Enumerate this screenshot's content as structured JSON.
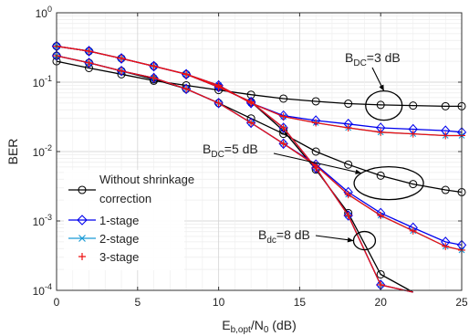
{
  "chart_data": {
    "type": "line",
    "xlabel_main": "E",
    "xlabel_sub": "b,opt",
    "xlabel_mid": "/N",
    "xlabel_sub2": "0",
    "xlabel_unit": " (dB)",
    "ylabel": "BER",
    "xlim": [
      0,
      25
    ],
    "ylim": [
      0.0001,
      1
    ],
    "yscale": "log",
    "grid": true,
    "legend_position": "bottom-left",
    "x_ticks": [
      "0",
      "5",
      "10",
      "15",
      "20",
      "25"
    ],
    "y_ticks": [
      {
        "base": "10",
        "exp": "0"
      },
      {
        "base": "10",
        "exp": "-1"
      },
      {
        "base": "10",
        "exp": "-2"
      },
      {
        "base": "10",
        "exp": "-3"
      },
      {
        "base": "10",
        "exp": "-4"
      }
    ],
    "legend": [
      {
        "label": "Without shrinkage",
        "label2": "correction",
        "marker": "circle",
        "color": "#000000"
      },
      {
        "label": "1-stage",
        "marker": "diamond",
        "color": "#0000ee"
      },
      {
        "label": "2-stage",
        "marker": "x",
        "color": "#1a9bd6"
      },
      {
        "label": "3-stage",
        "marker": "plus",
        "color": "#ee1111"
      }
    ],
    "annotations": [
      {
        "prefix": "B",
        "sub": "DC",
        "suffix": "=3 dB",
        "ellipse_center": [
          20.2,
          0.046
        ]
      },
      {
        "prefix": "B",
        "sub": "DC",
        "suffix": "=5 dB",
        "ellipse_center": [
          20.5,
          0.0035
        ]
      },
      {
        "prefix": "B",
        "sub": "dc",
        "suffix": "=8 dB",
        "ellipse_center": [
          19,
          0.00052
        ]
      }
    ],
    "x": [
      0,
      2,
      4,
      6,
      8,
      10,
      12,
      14,
      16,
      18,
      20,
      22,
      24,
      25
    ],
    "series": [
      {
        "group": "B_DC=3 dB",
        "kind": "without",
        "marker": "circle",
        "color": "#000000",
        "values": [
          0.2,
          0.16,
          0.13,
          0.105,
          0.09,
          0.077,
          0.066,
          0.058,
          0.053,
          0.049,
          0.047,
          0.046,
          0.045,
          0.045
        ]
      },
      {
        "group": "B_DC=3 dB",
        "kind": "1-stage",
        "marker": "diamond",
        "color": "#0000ee",
        "values": [
          0.33,
          0.28,
          0.22,
          0.17,
          0.13,
          0.09,
          0.05,
          0.033,
          0.028,
          0.025,
          0.022,
          0.021,
          0.02,
          0.019
        ]
      },
      {
        "group": "B_DC=3 dB",
        "kind": "2-stage",
        "marker": "x",
        "color": "#1a9bd6",
        "values": [
          0.33,
          0.28,
          0.22,
          0.17,
          0.13,
          0.09,
          0.05,
          0.032,
          0.026,
          0.022,
          0.019,
          0.018,
          0.017,
          0.017
        ]
      },
      {
        "group": "B_DC=3 dB",
        "kind": "3-stage",
        "marker": "plus",
        "color": "#ee1111",
        "values": [
          0.33,
          0.28,
          0.22,
          0.17,
          0.13,
          0.09,
          0.05,
          0.032,
          0.026,
          0.022,
          0.019,
          0.018,
          0.017,
          0.017
        ]
      },
      {
        "group": "B_DC=5 dB",
        "kind": "without",
        "marker": "circle",
        "color": "#000000",
        "values": [
          0.24,
          0.19,
          0.145,
          0.11,
          0.08,
          0.05,
          0.03,
          0.018,
          0.01,
          0.0065,
          0.0045,
          0.0034,
          0.0028,
          0.0026
        ]
      },
      {
        "group": "B_DC=5 dB",
        "kind": "1-stage",
        "marker": "diamond",
        "color": "#0000ee",
        "values": [
          0.24,
          0.19,
          0.145,
          0.115,
          0.08,
          0.05,
          0.026,
          0.013,
          0.0065,
          0.0026,
          0.0013,
          0.0008,
          0.0005,
          0.00045
        ]
      },
      {
        "group": "B_DC=5 dB",
        "kind": "2-stage",
        "marker": "x",
        "color": "#1a9bd6",
        "values": [
          0.24,
          0.19,
          0.145,
          0.115,
          0.08,
          0.05,
          0.026,
          0.013,
          0.0063,
          0.0024,
          0.0012,
          0.00072,
          0.00043,
          0.00038
        ]
      },
      {
        "group": "B_DC=5 dB",
        "kind": "3-stage",
        "marker": "plus",
        "color": "#ee1111",
        "values": [
          0.24,
          0.19,
          0.145,
          0.115,
          0.08,
          0.05,
          0.026,
          0.013,
          0.0063,
          0.0024,
          0.0012,
          0.00072,
          0.00043,
          0.00038
        ]
      },
      {
        "group": "B_dc=8 dB",
        "kind": "without",
        "marker": "circle",
        "color": "#000000",
        "values": [
          0.33,
          0.28,
          0.22,
          0.17,
          0.13,
          0.085,
          0.052,
          0.02,
          0.0055,
          0.0013,
          0.00017,
          4e-05,
          null,
          null
        ]
      },
      {
        "group": "B_dc=8 dB",
        "kind": "1-stage",
        "marker": "diamond",
        "color": "#0000ee",
        "values": [
          0.33,
          0.28,
          0.22,
          0.17,
          0.13,
          0.085,
          0.052,
          0.022,
          0.0058,
          0.0012,
          0.00012,
          3e-05,
          null,
          null
        ]
      },
      {
        "group": "B_dc=8 dB",
        "kind": "2-stage",
        "marker": "x",
        "color": "#1a9bd6",
        "values": [
          0.33,
          0.28,
          0.22,
          0.17,
          0.13,
          0.085,
          0.052,
          0.022,
          0.0058,
          0.0012,
          0.00012,
          3e-05,
          null,
          null
        ]
      },
      {
        "group": "B_dc=8 dB",
        "kind": "3-stage",
        "marker": "plus",
        "color": "#ee1111",
        "values": [
          0.33,
          0.28,
          0.22,
          0.17,
          0.13,
          0.085,
          0.052,
          0.022,
          0.0058,
          0.0012,
          0.00012,
          3e-05,
          null,
          null
        ]
      }
    ]
  }
}
